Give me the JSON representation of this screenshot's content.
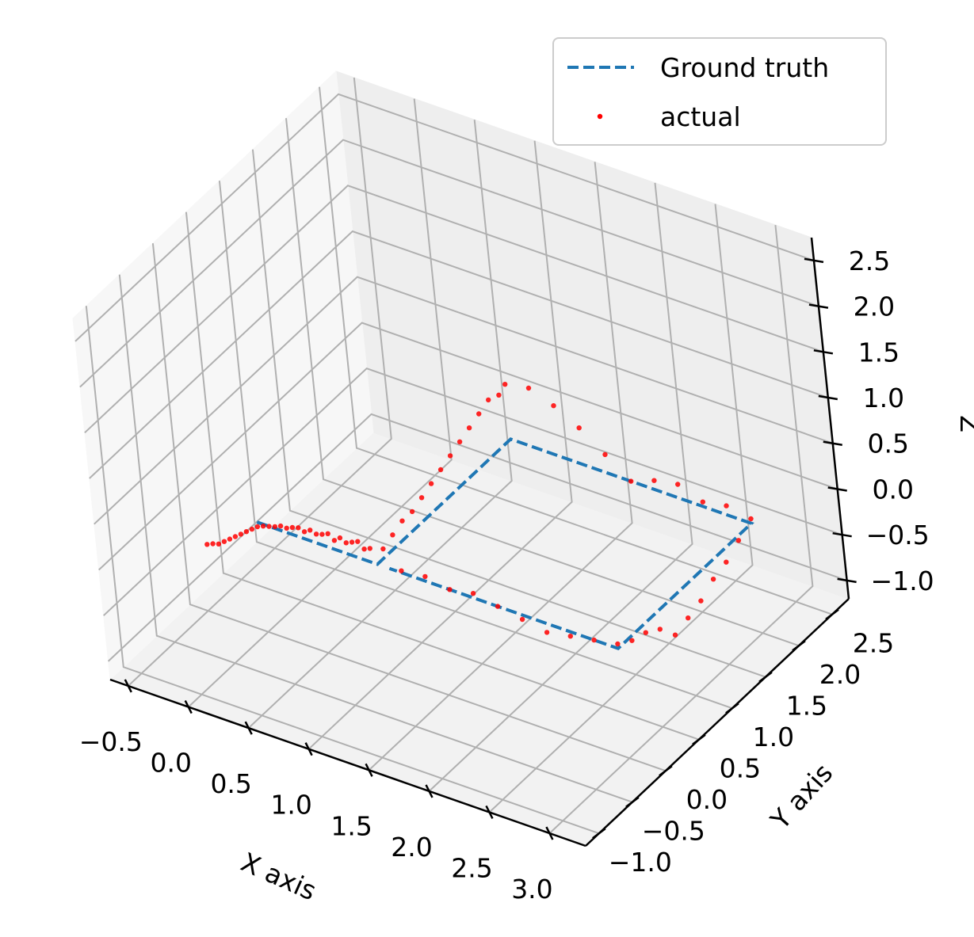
{
  "chart_data": {
    "type": "scatter",
    "projection": "3d",
    "title": "",
    "xlabel": "X axis",
    "ylabel": "Y axis",
    "zlabel": "Z",
    "x_ticks": [
      "−0.5",
      "0.0",
      "0.5",
      "1.0",
      "1.5",
      "2.0",
      "2.5",
      "3.0"
    ],
    "y_ticks": [
      "−1.0",
      "−0.5",
      "0.0",
      "0.5",
      "1.0",
      "1.5",
      "2.0",
      "2.5"
    ],
    "z_ticks": [
      "−1.0",
      "−0.5",
      "0.0",
      "0.5",
      "1.0",
      "1.5",
      "2.0",
      "2.5"
    ],
    "x_tick_values": [
      -0.5,
      0.0,
      0.5,
      1.0,
      1.5,
      2.0,
      2.5,
      3.0
    ],
    "y_tick_values": [
      -1.0,
      -0.5,
      0.0,
      0.5,
      1.0,
      1.5,
      2.0,
      2.5
    ],
    "z_tick_values": [
      -1.0,
      -0.5,
      0.0,
      0.5,
      1.0,
      1.5,
      2.0,
      2.5
    ],
    "xlim": [
      -0.65,
      3.3
    ],
    "ylim": [
      -1.2,
      2.75
    ],
    "zlim": [
      -1.2,
      2.75
    ],
    "grid": true,
    "legend_position": "top-right",
    "series": [
      {
        "name": "Ground truth",
        "kind": "line",
        "style": "dashed",
        "color": "#1f77b4",
        "points": [
          [
            0.0,
            0.0,
            0.0
          ],
          [
            0.25,
            0.0,
            0.0
          ],
          [
            0.5,
            0.0,
            0.0
          ],
          [
            0.75,
            0.0,
            0.0
          ],
          [
            1.0,
            0.0,
            0.0
          ],
          [
            1.0,
            0.5,
            0.0
          ],
          [
            1.0,
            1.0,
            0.0
          ],
          [
            1.0,
            1.5,
            0.0
          ],
          [
            1.0,
            2.0,
            0.0
          ],
          [
            1.5,
            2.0,
            0.0
          ],
          [
            2.0,
            2.0,
            0.0
          ],
          [
            2.5,
            2.0,
            0.0
          ],
          [
            3.0,
            2.0,
            0.0
          ],
          [
            3.0,
            1.5,
            0.0
          ],
          [
            3.0,
            1.0,
            0.0
          ],
          [
            3.0,
            0.5,
            0.0
          ],
          [
            3.0,
            0.0,
            0.0
          ],
          [
            2.5,
            0.0,
            0.0
          ],
          [
            2.0,
            0.0,
            0.0
          ],
          [
            1.5,
            0.0,
            0.0
          ],
          [
            1.1,
            0.0,
            0.0
          ]
        ]
      },
      {
        "name": "actual",
        "kind": "scatter",
        "color": "#ff0000",
        "points": [
          [
            -0.45,
            0.0,
            -0.45
          ],
          [
            -0.4,
            0.0,
            -0.42
          ],
          [
            -0.35,
            0.0,
            -0.4
          ],
          [
            -0.3,
            0.0,
            -0.35
          ],
          [
            -0.25,
            0.0,
            -0.3
          ],
          [
            -0.2,
            0.0,
            -0.25
          ],
          [
            -0.15,
            0.0,
            -0.2
          ],
          [
            -0.1,
            0.0,
            -0.15
          ],
          [
            -0.05,
            0.0,
            -0.1
          ],
          [
            0.0,
            0.0,
            -0.05
          ],
          [
            0.05,
            0.0,
            -0.02
          ],
          [
            0.1,
            0.0,
            0.0
          ],
          [
            0.15,
            0.0,
            0.02
          ],
          [
            0.2,
            0.0,
            0.05
          ],
          [
            0.25,
            0.0,
            0.05
          ],
          [
            0.3,
            0.0,
            0.08
          ],
          [
            0.35,
            0.0,
            0.1
          ],
          [
            0.4,
            0.0,
            0.08
          ],
          [
            0.45,
            0.0,
            0.12
          ],
          [
            0.5,
            0.0,
            0.1
          ],
          [
            0.55,
            0.0,
            0.12
          ],
          [
            0.6,
            0.0,
            0.15
          ],
          [
            0.65,
            0.0,
            0.1
          ],
          [
            0.7,
            0.0,
            0.15
          ],
          [
            0.75,
            0.0,
            0.12
          ],
          [
            0.8,
            0.0,
            0.15
          ],
          [
            0.85,
            0.0,
            0.18
          ],
          [
            0.9,
            0.0,
            0.12
          ],
          [
            0.95,
            0.0,
            0.15
          ],
          [
            1.0,
            0.1,
            0.1
          ],
          [
            1.0,
            0.25,
            0.15
          ],
          [
            1.0,
            0.4,
            0.2
          ],
          [
            1.0,
            0.55,
            0.2
          ],
          [
            1.0,
            0.7,
            0.25
          ],
          [
            1.0,
            0.85,
            0.3
          ],
          [
            1.0,
            1.0,
            0.35
          ],
          [
            1.0,
            1.15,
            0.4
          ],
          [
            1.0,
            1.3,
            0.45
          ],
          [
            1.0,
            1.45,
            0.5
          ],
          [
            1.0,
            1.6,
            0.55
          ],
          [
            1.0,
            1.75,
            0.6
          ],
          [
            1.0,
            1.9,
            0.55
          ],
          [
            1.0,
            2.0,
            0.6
          ],
          [
            1.2,
            2.0,
            0.65
          ],
          [
            1.4,
            2.0,
            0.55
          ],
          [
            1.6,
            2.0,
            0.4
          ],
          [
            1.8,
            2.0,
            0.2
          ],
          [
            2.0,
            2.0,
            0.0
          ],
          [
            2.2,
            2.0,
            0.1
          ],
          [
            2.4,
            2.0,
            0.15
          ],
          [
            2.6,
            2.0,
            0.05
          ],
          [
            2.8,
            2.0,
            0.1
          ],
          [
            3.0,
            2.0,
            0.05
          ],
          [
            3.0,
            1.8,
            -0.05
          ],
          [
            3.0,
            1.6,
            -0.15
          ],
          [
            3.0,
            1.4,
            -0.2
          ],
          [
            3.0,
            1.2,
            -0.3
          ],
          [
            3.0,
            1.0,
            -0.35
          ],
          [
            3.0,
            0.8,
            -0.4
          ],
          [
            3.0,
            0.6,
            -0.2
          ],
          [
            3.0,
            0.4,
            -0.1
          ],
          [
            3.0,
            0.2,
            -0.05
          ],
          [
            3.0,
            0.0,
            0.05
          ],
          [
            2.8,
            0.0,
            0.0
          ],
          [
            2.6,
            0.0,
            -0.05
          ],
          [
            2.4,
            0.0,
            -0.1
          ],
          [
            2.2,
            0.0,
            -0.05
          ],
          [
            2.0,
            0.0,
            0.0
          ],
          [
            1.8,
            0.0,
            0.05
          ],
          [
            1.6,
            0.0,
            0.0
          ],
          [
            1.4,
            0.0,
            0.05
          ],
          [
            1.2,
            0.0,
            0.02
          ]
        ]
      }
    ]
  }
}
